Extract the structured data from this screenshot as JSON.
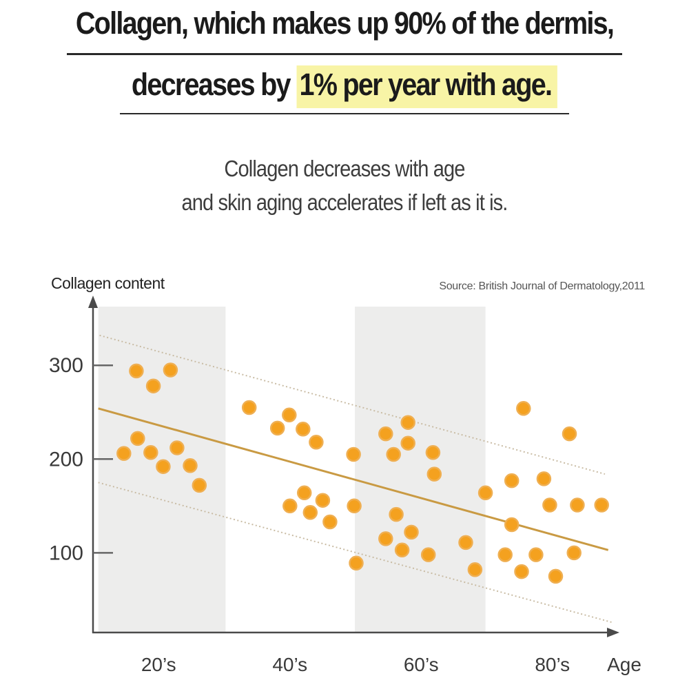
{
  "header": {
    "line1": "Collagen, which makes up 90% of the dermis,",
    "line2_plain": "decreases by ",
    "line2_highlight": "1% per year with age.",
    "highlight_color": "#F8F4A6",
    "subtitle_line1": "Collagen decreases with age",
    "subtitle_line2": "and skin aging accelerates if left as it is."
  },
  "chart_data": {
    "type": "scatter",
    "title": "Collagen content",
    "source": "Source: British Journal of Dermatology,2011",
    "xlabel": "Age",
    "ylabel": "Collagen content",
    "xlim": [
      10,
      90
    ],
    "ylim": [
      15,
      370
    ],
    "y_ticks": [
      300,
      200,
      100
    ],
    "x_ticks": [
      {
        "age": 20,
        "label": "20’s"
      },
      {
        "age": 40,
        "label": "40’s"
      },
      {
        "age": 60,
        "label": "60’s"
      },
      {
        "age": 80,
        "label": "80’s"
      }
    ],
    "bands": [
      {
        "from": 10.8,
        "to": 30.2
      },
      {
        "from": 49.9,
        "to": 69.8
      }
    ],
    "trend_line": {
      "x1": 10.8,
      "y1": 254,
      "x2": 88.5,
      "y2": 103
    },
    "upper_dotted": {
      "x1": 11.0,
      "y1": 332,
      "x2": 88.0,
      "y2": 184
    },
    "lower_dotted": {
      "x1": 10.8,
      "y1": 175,
      "x2": 89.0,
      "y2": 26
    },
    "points": [
      [
        16.6,
        294
      ],
      [
        21.8,
        295
      ],
      [
        19.2,
        278
      ],
      [
        16.8,
        222
      ],
      [
        14.7,
        206
      ],
      [
        18.8,
        207
      ],
      [
        22.8,
        212
      ],
      [
        20.7,
        192
      ],
      [
        24.8,
        193
      ],
      [
        26.2,
        172
      ],
      [
        33.8,
        255
      ],
      [
        39.9,
        247
      ],
      [
        38.1,
        233
      ],
      [
        42,
        232
      ],
      [
        44,
        218
      ],
      [
        49.7,
        205
      ],
      [
        42.2,
        164
      ],
      [
        40,
        150
      ],
      [
        45,
        156
      ],
      [
        43.1,
        143
      ],
      [
        46.1,
        133
      ],
      [
        49.8,
        150
      ],
      [
        50.1,
        89
      ],
      [
        58,
        239
      ],
      [
        54.6,
        227
      ],
      [
        58,
        217
      ],
      [
        55.8,
        205
      ],
      [
        61.8,
        207
      ],
      [
        62,
        184
      ],
      [
        56.2,
        141
      ],
      [
        58.5,
        122
      ],
      [
        54.6,
        115
      ],
      [
        57.1,
        103
      ],
      [
        61.1,
        98
      ],
      [
        66.8,
        111
      ],
      [
        68.2,
        82
      ],
      [
        69.8,
        164
      ],
      [
        75.6,
        254
      ],
      [
        82.6,
        227
      ],
      [
        73.8,
        177
      ],
      [
        78.7,
        179
      ],
      [
        79.6,
        151
      ],
      [
        83.8,
        151
      ],
      [
        87.5,
        151
      ],
      [
        73.8,
        130
      ],
      [
        72.8,
        98
      ],
      [
        77.5,
        98
      ],
      [
        83.3,
        100
      ],
      [
        75.3,
        80
      ],
      [
        80.5,
        75
      ]
    ],
    "colors": {
      "dot": "#F4A11F",
      "dot_ring": "#EFAF52",
      "trend": "#C99A43",
      "dotted": "#C9BCA4",
      "band": "#EDEDEC",
      "axis": "#4A4A4A",
      "tick_text": "#3A3A3A",
      "source_text": "#555555"
    }
  }
}
